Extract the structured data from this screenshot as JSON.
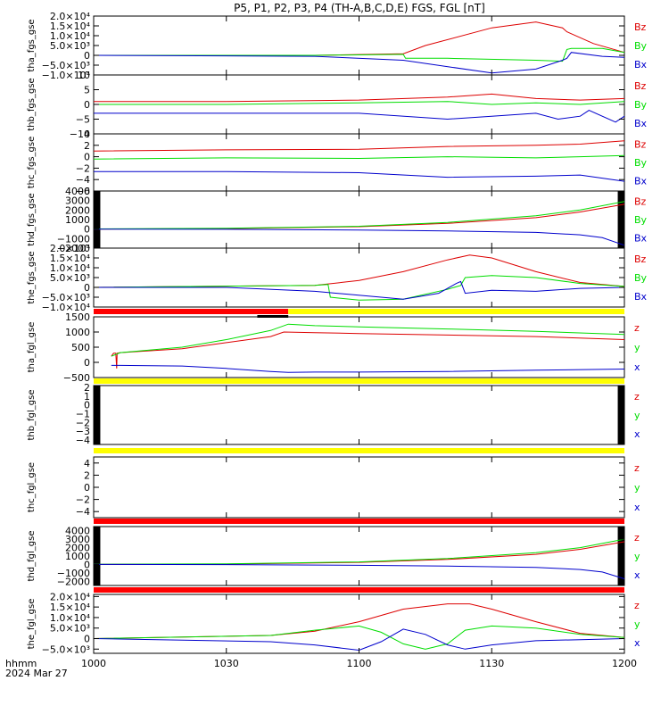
{
  "title": "P5, P1, P2, P3, P4 (TH-A,B,C,D,E) FGS, FGL [nT]",
  "footer": {
    "label": "hhmm",
    "date": "2024 Mar 27"
  },
  "time_axis": {
    "range_minutes": [
      600,
      720
    ],
    "tick_minutes": [
      600,
      630,
      660,
      690,
      720
    ],
    "tick_labels": [
      "1000",
      "1030",
      "1100",
      "1130",
      "1200"
    ]
  },
  "colors": {
    "x": "#0000cc",
    "y": "#00dd00",
    "z": "#dd0000",
    "bar_red": "#ff0000",
    "bar_yellow": "#ffff00",
    "black": "#000000"
  },
  "chart_data": [
    {
      "type": "line",
      "ylabel": "tha_fgs_gse",
      "ylim": [
        -10000,
        20000
      ],
      "yticks": [
        -10000,
        -5000,
        0,
        5000,
        10000,
        15000,
        20000
      ],
      "ytick_labels": [
        "−1.0×10⁴",
        "−5.0×10³",
        "0",
        "5.0×10³",
        "1.0×10⁴",
        "1.5×10⁴",
        "2.0×10⁴"
      ],
      "gaps": [],
      "series": [
        {
          "name": "Bz",
          "comp": "z",
          "x": [
            600,
            650,
            670,
            675,
            690,
            700,
            706,
            707,
            708,
            713,
            720
          ],
          "y": [
            0,
            0,
            800,
            5000,
            14000,
            17000,
            14000,
            12000,
            11000,
            6000,
            1500
          ]
        },
        {
          "name": "By",
          "comp": "y",
          "x": [
            600,
            650,
            670,
            670.5,
            680,
            700,
            706,
            707,
            708,
            715,
            720
          ],
          "y": [
            0,
            0,
            500,
            -1500,
            -1500,
            -2500,
            -3000,
            3000,
            3500,
            3500,
            1500
          ]
        },
        {
          "name": "Bx",
          "comp": "x",
          "x": [
            600,
            650,
            670,
            690,
            700,
            706,
            707,
            708,
            715,
            720
          ],
          "y": [
            0,
            -500,
            -2500,
            -9000,
            -7000,
            -2500,
            -1500,
            1500,
            -500,
            -1000
          ]
        }
      ]
    },
    {
      "type": "line",
      "ylabel": "thb_fgs_gse",
      "ylim": [
        -10,
        10
      ],
      "yticks": [
        -10,
        -5,
        0,
        5,
        10
      ],
      "ytick_labels": [
        "−10",
        "−5",
        "0",
        "5",
        "10"
      ],
      "gaps": [],
      "series": [
        {
          "name": "Bz",
          "comp": "z",
          "x": [
            600,
            630,
            660,
            680,
            690,
            700,
            710,
            720
          ],
          "y": [
            1,
            1,
            1.5,
            2.5,
            3.5,
            2,
            1.5,
            2
          ]
        },
        {
          "name": "By",
          "comp": "y",
          "x": [
            600,
            630,
            660,
            680,
            690,
            700,
            710,
            720
          ],
          "y": [
            0,
            0,
            0.5,
            1,
            0,
            0.5,
            0,
            1
          ]
        },
        {
          "name": "Bx",
          "comp": "x",
          "x": [
            600,
            630,
            660,
            680,
            690,
            700,
            705,
            710,
            712,
            718,
            720
          ],
          "y": [
            -3,
            -3,
            -3,
            -5,
            -4,
            -3,
            -5,
            -4,
            -2,
            -6,
            -4
          ]
        }
      ]
    },
    {
      "type": "line",
      "ylabel": "thc_fgs_gse",
      "ylim": [
        -6,
        4
      ],
      "yticks": [
        -6,
        -4,
        -2,
        0,
        2,
        4
      ],
      "ytick_labels": [
        "−6",
        "−4",
        "−2",
        "0",
        "2",
        "4"
      ],
      "gaps": [],
      "series": [
        {
          "name": "Bz",
          "comp": "z",
          "x": [
            600,
            630,
            660,
            680,
            700,
            710,
            720
          ],
          "y": [
            1,
            1.2,
            1.3,
            1.8,
            2,
            2.2,
            2.8
          ]
        },
        {
          "name": "By",
          "comp": "y",
          "x": [
            600,
            630,
            660,
            680,
            700,
            710,
            720
          ],
          "y": [
            -0.4,
            -0.2,
            -0.3,
            0,
            -0.2,
            0,
            0.2
          ]
        },
        {
          "name": "Bx",
          "comp": "x",
          "x": [
            600,
            630,
            660,
            680,
            700,
            710,
            720
          ],
          "y": [
            -2.6,
            -2.6,
            -2.8,
            -3.6,
            -3.4,
            -3.2,
            -4.3
          ]
        }
      ]
    },
    {
      "type": "line",
      "ylabel": "thd_fgs_gse",
      "ylim": [
        -2000,
        4000
      ],
      "yticks": [
        -2000,
        -1000,
        0,
        1000,
        2000,
        3000,
        4000
      ],
      "ytick_labels": [
        "−2000",
        "−1000",
        "0",
        "1000",
        "2000",
        "3000",
        "4000"
      ],
      "gaps": [
        [
          600,
          601.5
        ],
        [
          718.5,
          720
        ]
      ],
      "series": [
        {
          "name": "Bz",
          "comp": "z",
          "x": [
            600,
            630,
            660,
            680,
            700,
            710,
            720
          ],
          "y": [
            0,
            50,
            250,
            600,
            1200,
            1800,
            2600
          ]
        },
        {
          "name": "By",
          "comp": "y",
          "x": [
            600,
            630,
            660,
            680,
            700,
            710,
            720
          ],
          "y": [
            20,
            80,
            300,
            700,
            1400,
            2000,
            2900
          ]
        },
        {
          "name": "Bx",
          "comp": "x",
          "x": [
            600,
            630,
            660,
            680,
            700,
            710,
            715,
            720
          ],
          "y": [
            0,
            -20,
            -100,
            -200,
            -350,
            -600,
            -900,
            -1700
          ]
        }
      ]
    },
    {
      "type": "line",
      "ylabel": "the_fgs_gse",
      "ylim": [
        -10000,
        20000
      ],
      "yticks": [
        -10000,
        -5000,
        0,
        5000,
        10000,
        15000,
        20000
      ],
      "ytick_labels": [
        "−1.0×10⁴",
        "−5.0×10³",
        "0",
        "5.0×10³",
        "1.0×10⁴",
        "1.5×10⁴",
        "2.0×10⁴"
      ],
      "gaps": [],
      "series": [
        {
          "name": "Bz",
          "comp": "z",
          "x": [
            600,
            650,
            660,
            670,
            680,
            685,
            690,
            700,
            710,
            720
          ],
          "y": [
            0,
            1000,
            3500,
            8000,
            14000,
            16500,
            15000,
            8000,
            2500,
            500
          ]
        },
        {
          "name": "By",
          "comp": "y",
          "x": [
            600,
            650,
            653,
            653.5,
            660,
            670,
            680,
            683,
            684,
            690,
            700,
            710,
            720
          ],
          "y": [
            0,
            1000,
            1500,
            -5000,
            -6500,
            -6000,
            -1000,
            1000,
            5000,
            6000,
            5000,
            2000,
            500
          ]
        },
        {
          "name": "Bx",
          "comp": "x",
          "x": [
            600,
            630,
            650,
            665,
            670,
            678,
            682,
            683,
            684,
            690,
            700,
            710,
            720
          ],
          "y": [
            0,
            0,
            -2000,
            -5000,
            -6000,
            -3000,
            2000,
            3000,
            -3000,
            -1500,
            -2000,
            -500,
            0
          ]
        }
      ]
    },
    {
      "type": "line",
      "ylabel": "tha_fgl_gse",
      "ylim": [
        -500,
        1500
      ],
      "yticks": [
        -500,
        0,
        500,
        1000,
        1500
      ],
      "ytick_labels": [
        "−500",
        "0",
        "500",
        "1000",
        "1500"
      ],
      "gaps": [],
      "series": [
        {
          "name": "z",
          "comp": "z",
          "x": [
            604,
            604.5,
            605,
            605.2,
            605.3,
            606,
            620,
            630,
            640,
            643,
            650,
            660,
            680,
            700,
            720
          ],
          "y": [
            200,
            300,
            300,
            -200,
            300,
            320,
            450,
            650,
            850,
            1000,
            980,
            950,
            900,
            850,
            750
          ]
        },
        {
          "name": "y",
          "comp": "y",
          "x": [
            604,
            606,
            620,
            630,
            640,
            644,
            650,
            660,
            680,
            700,
            720
          ],
          "y": [
            200,
            320,
            500,
            750,
            1050,
            1260,
            1210,
            1170,
            1100,
            1020,
            920
          ]
        },
        {
          "name": "x",
          "comp": "x",
          "x": [
            604,
            606,
            620,
            630,
            640,
            644,
            650,
            660,
            680,
            700,
            720
          ],
          "y": [
            -100,
            -100,
            -120,
            -200,
            -300,
            -330,
            -320,
            -320,
            -300,
            -260,
            -220
          ]
        }
      ]
    },
    {
      "type": "line",
      "ylabel": "thb_fgl_gse",
      "ylim": [
        -4.5,
        2.2
      ],
      "yticks": [
        -4,
        -3,
        -2,
        -1,
        0,
        1,
        2
      ],
      "ytick_labels": [
        "−4",
        "−3",
        "−2",
        "−1",
        "0",
        "1",
        "2"
      ],
      "gaps": [
        [
          600,
          601.5
        ],
        [
          718.5,
          720
        ]
      ],
      "series": [
        {
          "name": "z",
          "comp": "z",
          "x": [],
          "y": []
        },
        {
          "name": "y",
          "comp": "y",
          "x": [],
          "y": []
        },
        {
          "name": "x",
          "comp": "x",
          "x": [],
          "y": []
        }
      ]
    },
    {
      "type": "line",
      "ylabel": "thc_fgl_gse",
      "ylim": [
        -5,
        5
      ],
      "yticks": [
        -4,
        -2,
        0,
        2,
        4
      ],
      "ytick_labels": [
        "−4",
        "−2",
        "0",
        "2",
        "4"
      ],
      "gaps": [],
      "series": [
        {
          "name": "z",
          "comp": "z",
          "x": [],
          "y": []
        },
        {
          "name": "y",
          "comp": "y",
          "x": [],
          "y": []
        },
        {
          "name": "x",
          "comp": "x",
          "x": [],
          "y": []
        }
      ]
    },
    {
      "type": "line",
      "ylabel": "thd_fgl_gse",
      "ylim": [
        -2500,
        4500
      ],
      "yticks": [
        -2000,
        -1000,
        0,
        1000,
        2000,
        3000,
        4000
      ],
      "ytick_labels": [
        "−2000",
        "−1000",
        "0",
        "1000",
        "2000",
        "3000",
        "4000"
      ],
      "gaps": [
        [
          600,
          601.5
        ],
        [
          718.5,
          720
        ]
      ],
      "series": [
        {
          "name": "z",
          "comp": "z",
          "x": [
            600,
            630,
            660,
            680,
            700,
            710,
            720
          ],
          "y": [
            0,
            50,
            250,
            600,
            1200,
            1800,
            2700
          ]
        },
        {
          "name": "y",
          "comp": "y",
          "x": [
            600,
            630,
            660,
            680,
            700,
            710,
            720
          ],
          "y": [
            20,
            80,
            300,
            700,
            1400,
            2000,
            3000
          ]
        },
        {
          "name": "x",
          "comp": "x",
          "x": [
            600,
            630,
            660,
            680,
            700,
            710,
            715,
            720
          ],
          "y": [
            0,
            -20,
            -100,
            -200,
            -350,
            -600,
            -900,
            -1700
          ]
        }
      ]
    },
    {
      "type": "line",
      "ylabel": "the_fgl_gse",
      "ylim": [
        -7000,
        21000
      ],
      "yticks": [
        -5000,
        0,
        5000,
        10000,
        15000,
        20000
      ],
      "ytick_labels": [
        "−5.0×10³",
        "0",
        "5.0×10³",
        "1.0×10⁴",
        "1.5×10⁴",
        "2.0×10⁴"
      ],
      "gaps": [],
      "series": [
        {
          "name": "z",
          "comp": "z",
          "x": [
            600,
            640,
            650,
            660,
            670,
            680,
            685,
            690,
            700,
            710,
            720
          ],
          "y": [
            0,
            1500,
            3500,
            8000,
            14000,
            16500,
            16500,
            14000,
            8000,
            2500,
            500
          ]
        },
        {
          "name": "y",
          "comp": "y",
          "x": [
            600,
            640,
            650,
            660,
            665,
            670,
            675,
            680,
            684,
            690,
            700,
            710,
            720
          ],
          "y": [
            0,
            1500,
            4000,
            6000,
            3000,
            -2500,
            -5000,
            -2500,
            4000,
            6000,
            5000,
            2000,
            500
          ]
        },
        {
          "name": "x",
          "comp": "x",
          "x": [
            600,
            640,
            650,
            660,
            665,
            670,
            675,
            680,
            684,
            690,
            700,
            710,
            720
          ],
          "y": [
            0,
            -1500,
            -3000,
            -5500,
            -1500,
            4500,
            2000,
            -3000,
            -5000,
            -3000,
            -1000,
            -500,
            0
          ]
        }
      ]
    }
  ],
  "status_bars": [
    {
      "after_panel": 4,
      "segments": [
        {
          "from": 600,
          "to": 644,
          "color": "bar_red"
        },
        {
          "from": 644,
          "to": 720,
          "color": "bar_yellow"
        }
      ],
      "marker": {
        "from": 637,
        "to": 644
      }
    },
    {
      "after_panel": 5,
      "segments": [
        {
          "from": 600,
          "to": 720,
          "color": "bar_yellow"
        }
      ]
    },
    {
      "after_panel": 6,
      "segments": [
        {
          "from": 600,
          "to": 720,
          "color": "bar_yellow"
        }
      ]
    },
    {
      "after_panel": 7,
      "segments": [
        {
          "from": 600,
          "to": 720,
          "color": "bar_red"
        }
      ]
    },
    {
      "after_panel": 8,
      "segments": [
        {
          "from": 600,
          "to": 720,
          "color": "bar_red"
        }
      ]
    }
  ]
}
